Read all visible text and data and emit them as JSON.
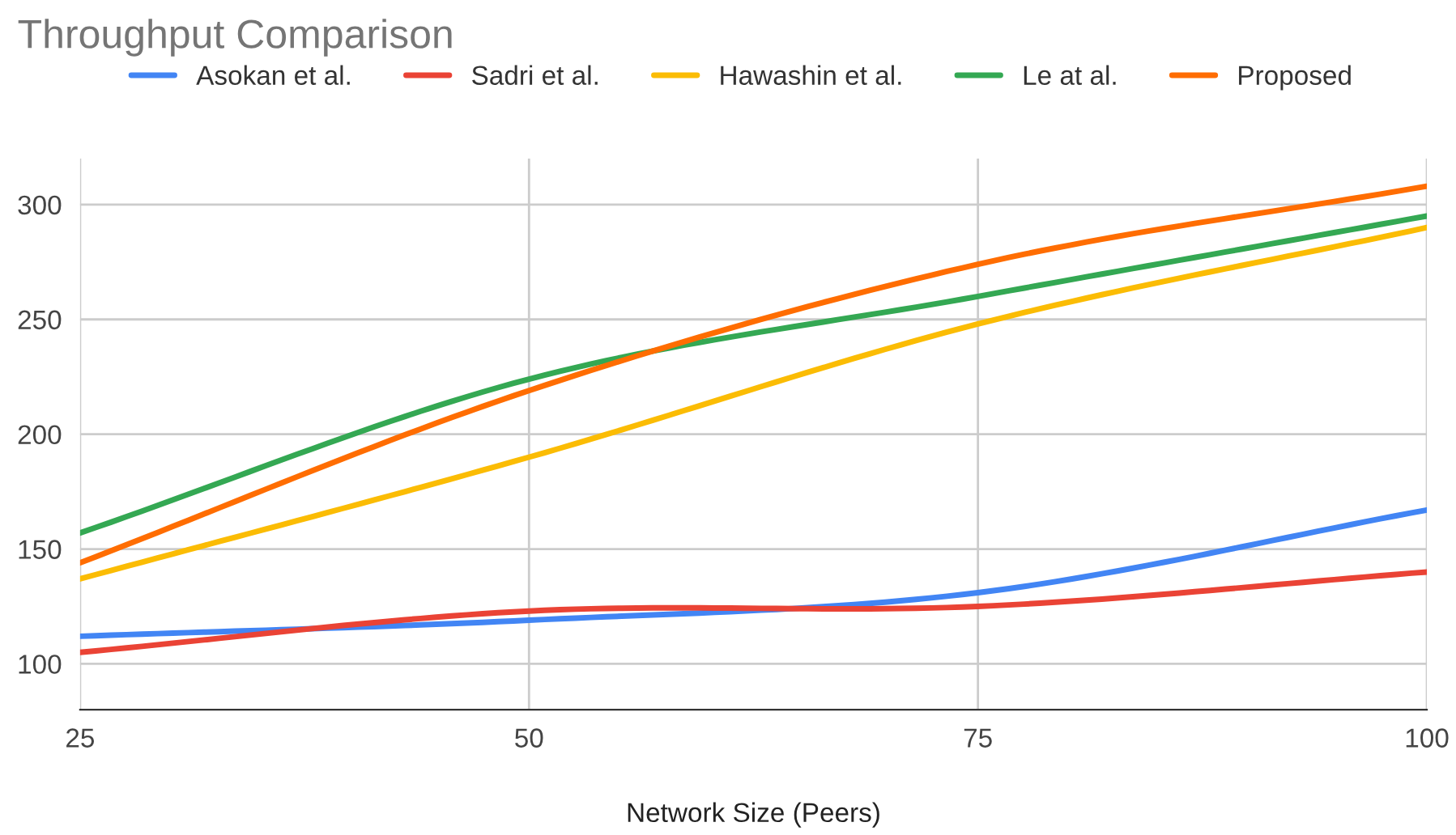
{
  "chart_data": {
    "type": "line",
    "title": "Throughput Comparison",
    "xlabel": "Network Size (Peers)",
    "x": [
      25,
      50,
      75,
      100
    ],
    "series": [
      {
        "name": "Asokan et al.",
        "color": "#4285f4",
        "values": [
          112,
          119,
          131,
          167
        ]
      },
      {
        "name": "Sadri et al.",
        "color": "#ea4335",
        "values": [
          105,
          123,
          125,
          140
        ]
      },
      {
        "name": "Hawashin et al.",
        "color": "#fbbc04",
        "values": [
          137,
          190,
          248,
          290
        ]
      },
      {
        "name": "Le at al.",
        "color": "#34a853",
        "values": [
          157,
          224,
          260,
          295
        ]
      },
      {
        "name": "Proposed",
        "color": "#ff6d01",
        "values": [
          144,
          219,
          274,
          308
        ]
      }
    ],
    "xlim": [
      25,
      100
    ],
    "xticks": [
      25,
      50,
      75,
      100
    ],
    "ylim": [
      80,
      320
    ],
    "yticks": [
      100,
      150,
      200,
      250,
      300
    ],
    "grid": true,
    "legend": "top",
    "marker": "none",
    "line_style": "solid"
  }
}
